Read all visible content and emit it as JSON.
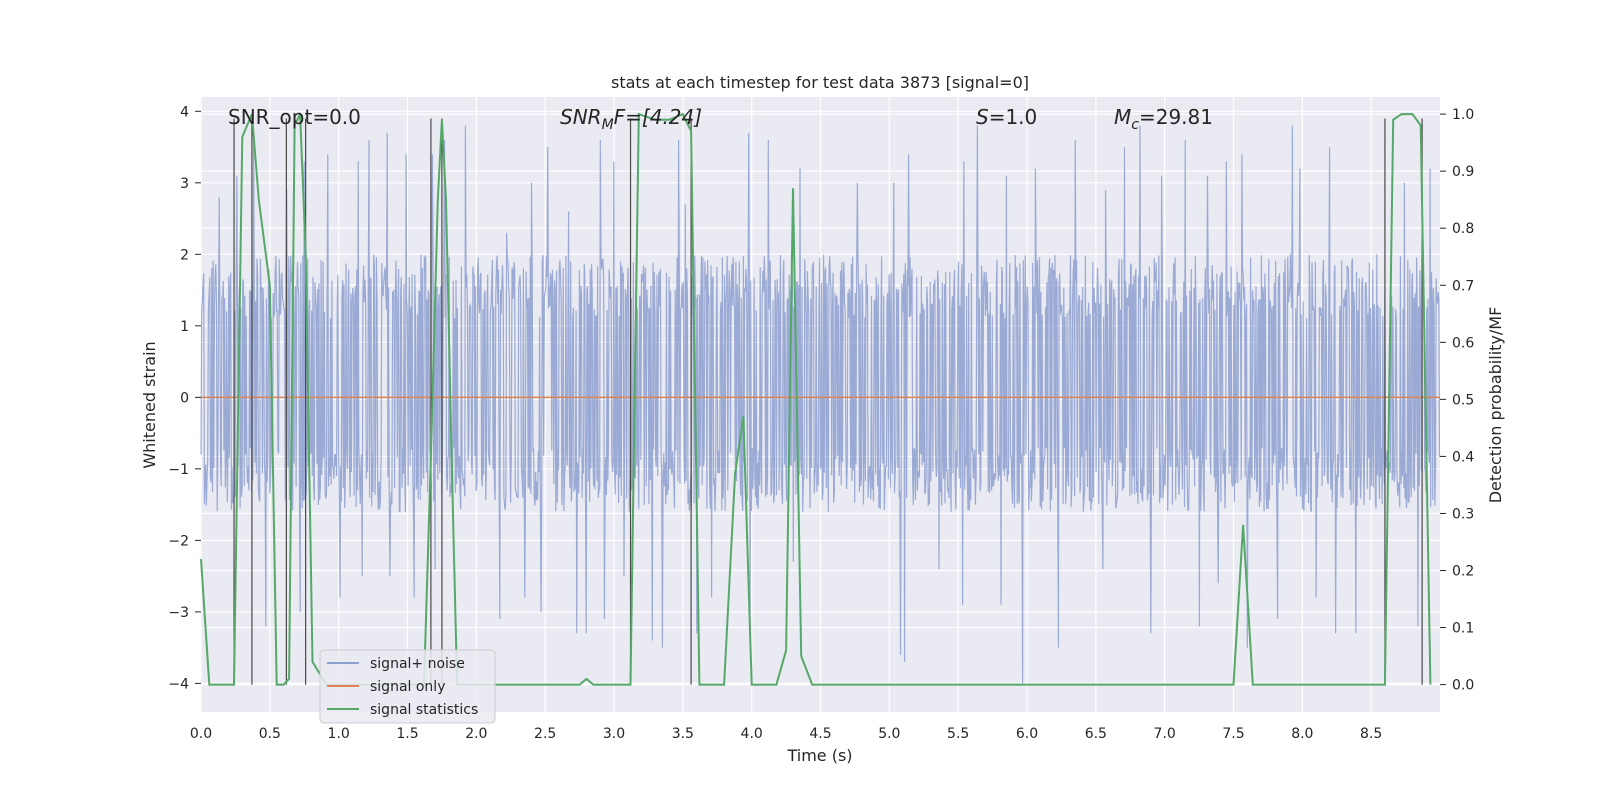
{
  "chart_data": {
    "type": "line",
    "title": "stats at each timestep for test data 3873 [signal=0]",
    "xlabel": "Time (s)",
    "ylabel_left": "Whitened strain",
    "ylabel_right": "Detection probability/MF",
    "xlim": [
      0.0,
      9.0
    ],
    "ylim_left": [
      -4.4,
      4.2
    ],
    "ylim_right": [
      -0.048,
      1.03
    ],
    "x_ticks": [
      "0.0",
      "0.5",
      "1.0",
      "1.5",
      "2.0",
      "2.5",
      "3.0",
      "3.5",
      "4.0",
      "4.5",
      "5.0",
      "5.5",
      "6.0",
      "6.5",
      "7.0",
      "7.5",
      "8.0",
      "8.5"
    ],
    "y_ticks_left": [
      "4",
      "3",
      "2",
      "1",
      "0",
      "−1",
      "−2",
      "−3",
      "−4"
    ],
    "y_ticks_right": [
      "1.0",
      "0.9",
      "0.8",
      "0.7",
      "0.6",
      "0.5",
      "0.4",
      "0.3",
      "0.2",
      "0.1",
      "0.0"
    ],
    "annotations": {
      "snr_opt": "SNR_opt=0.0",
      "snr_mf_prefix": "SNR",
      "snr_mf_sub": "M",
      "snr_mf_suffix": "F=[4.24]",
      "s_symbol": "S",
      "s_value": "=1.0",
      "mc_symbol": "M",
      "mc_sub": "c",
      "mc_value": "=29.81"
    },
    "legend": {
      "position": "lower-left",
      "items": [
        {
          "label": "signal+ noise",
          "color": "#8c9fcf"
        },
        {
          "label": "signal only",
          "color": "#dd8452"
        },
        {
          "label": "signal statistics",
          "color": "#55a868"
        }
      ]
    },
    "series": [
      {
        "name": "signal statistics",
        "color": "#55a868",
        "points": [
          [
            0.0,
            0.22
          ],
          [
            0.06,
            0.0
          ],
          [
            0.24,
            0.0
          ],
          [
            0.3,
            0.96
          ],
          [
            0.37,
            1.0
          ],
          [
            0.42,
            0.85
          ],
          [
            0.5,
            0.7
          ],
          [
            0.55,
            0.0
          ],
          [
            0.6,
            0.0
          ],
          [
            0.64,
            0.01
          ],
          [
            0.68,
            0.98
          ],
          [
            0.72,
            1.0
          ],
          [
            0.76,
            0.76
          ],
          [
            0.81,
            0.04
          ],
          [
            0.91,
            0.0
          ],
          [
            1.0,
            0.0
          ],
          [
            1.62,
            0.0
          ],
          [
            1.67,
            0.4
          ],
          [
            1.72,
            0.85
          ],
          [
            1.75,
            0.99
          ],
          [
            1.78,
            0.85
          ],
          [
            1.82,
            0.4
          ],
          [
            1.86,
            0.0
          ],
          [
            2.0,
            0.0
          ],
          [
            2.75,
            0.0
          ],
          [
            2.8,
            0.01
          ],
          [
            2.85,
            0.0
          ],
          [
            3.0,
            0.0
          ],
          [
            3.12,
            0.0
          ],
          [
            3.18,
            1.0
          ],
          [
            3.3,
            0.99
          ],
          [
            3.4,
            0.99
          ],
          [
            3.5,
            1.0
          ],
          [
            3.56,
            0.97
          ],
          [
            3.62,
            0.0
          ],
          [
            3.72,
            0.0
          ],
          [
            3.8,
            0.0
          ],
          [
            3.88,
            0.37
          ],
          [
            3.94,
            0.47
          ],
          [
            4.0,
            0.0
          ],
          [
            4.18,
            0.0
          ],
          [
            4.25,
            0.06
          ],
          [
            4.3,
            0.87
          ],
          [
            4.36,
            0.05
          ],
          [
            4.44,
            0.0
          ],
          [
            5.0,
            0.0
          ],
          [
            7.5,
            0.0
          ],
          [
            7.57,
            0.28
          ],
          [
            7.64,
            0.0
          ],
          [
            8.6,
            0.0
          ],
          [
            8.66,
            0.99
          ],
          [
            8.72,
            1.0
          ],
          [
            8.8,
            1.0
          ],
          [
            8.86,
            0.98
          ],
          [
            8.93,
            0.0
          ]
        ]
      },
      {
        "name": "signal only",
        "color": "#dd8452",
        "points": [
          [
            0.0,
            0.0
          ],
          [
            9.0,
            0.0
          ]
        ]
      }
    ],
    "noise_series": {
      "name": "signal+ noise",
      "color": "#8c9fcf",
      "dt": 0.0049,
      "seed": 3873,
      "core_low": -1.6,
      "core_high": 2.0,
      "pos_spikes": [
        [
          0.13,
          2.8
        ],
        [
          0.26,
          3.1
        ],
        [
          0.38,
          3.6
        ],
        [
          0.62,
          2.9
        ],
        [
          0.75,
          3.3
        ],
        [
          0.92,
          3.4
        ],
        [
          1.14,
          3.3
        ],
        [
          1.22,
          3.6
        ],
        [
          1.35,
          3.7
        ],
        [
          1.49,
          3.4
        ],
        [
          1.68,
          3.4
        ],
        [
          1.77,
          3.6
        ],
        [
          1.92,
          3.8
        ],
        [
          2.22,
          2.3
        ],
        [
          2.4,
          3.0
        ],
        [
          2.52,
          3.5
        ],
        [
          2.67,
          2.6
        ],
        [
          2.9,
          3.6
        ],
        [
          3.0,
          3.3
        ],
        [
          3.47,
          3.6
        ],
        [
          3.52,
          2.7
        ],
        [
          3.98,
          3.7
        ],
        [
          4.12,
          3.6
        ],
        [
          4.35,
          3.2
        ],
        [
          4.77,
          3.0
        ],
        [
          5.03,
          3.0
        ],
        [
          5.14,
          3.4
        ],
        [
          5.54,
          3.3
        ],
        [
          5.64,
          3.8
        ],
        [
          5.85,
          3.1
        ],
        [
          6.06,
          3.2
        ],
        [
          6.35,
          3.6
        ],
        [
          6.57,
          2.9
        ],
        [
          6.71,
          3.5
        ],
        [
          6.82,
          3.8
        ],
        [
          6.98,
          3.1
        ],
        [
          7.15,
          3.6
        ],
        [
          7.31,
          3.1
        ],
        [
          7.45,
          3.3
        ],
        [
          7.56,
          3.4
        ],
        [
          7.93,
          3.8
        ],
        [
          7.98,
          3.2
        ],
        [
          8.2,
          3.5
        ],
        [
          8.74,
          3.0
        ],
        [
          8.93,
          3.2
        ]
      ],
      "neg_spikes": [
        [
          0.47,
          -3.2
        ],
        [
          0.72,
          -3.0
        ],
        [
          1.01,
          -2.8
        ],
        [
          1.17,
          -2.5
        ],
        [
          1.37,
          -2.5
        ],
        [
          1.55,
          -2.8
        ],
        [
          1.7,
          -2.4
        ],
        [
          2.17,
          -3.1
        ],
        [
          2.35,
          -2.8
        ],
        [
          2.47,
          -3.0
        ],
        [
          2.73,
          -3.3
        ],
        [
          2.8,
          -3.3
        ],
        [
          2.93,
          -3.1
        ],
        [
          3.07,
          -2.5
        ],
        [
          3.28,
          -3.4
        ],
        [
          3.35,
          -3.5
        ],
        [
          3.6,
          -3.3
        ],
        [
          3.71,
          -2.8
        ],
        [
          3.99,
          -3.0
        ],
        [
          4.3,
          -2.3
        ],
        [
          5.08,
          -3.6
        ],
        [
          5.11,
          -3.7
        ],
        [
          5.36,
          -2.4
        ],
        [
          5.53,
          -2.9
        ],
        [
          5.81,
          -2.9
        ],
        [
          5.97,
          -4.0
        ],
        [
          6.23,
          -3.5
        ],
        [
          6.55,
          -2.4
        ],
        [
          6.9,
          -3.3
        ],
        [
          7.25,
          -3.2
        ],
        [
          7.39,
          -2.6
        ],
        [
          7.6,
          -3.5
        ],
        [
          7.82,
          -3.1
        ],
        [
          8.1,
          -2.8
        ],
        [
          8.24,
          -3.3
        ],
        [
          8.39,
          -3.3
        ],
        [
          8.84,
          -3.2
        ]
      ]
    },
    "detection_markers": [
      0.24,
      0.37,
      0.62,
      0.76,
      1.67,
      1.75,
      3.12,
      3.56,
      8.6,
      8.87
    ]
  }
}
